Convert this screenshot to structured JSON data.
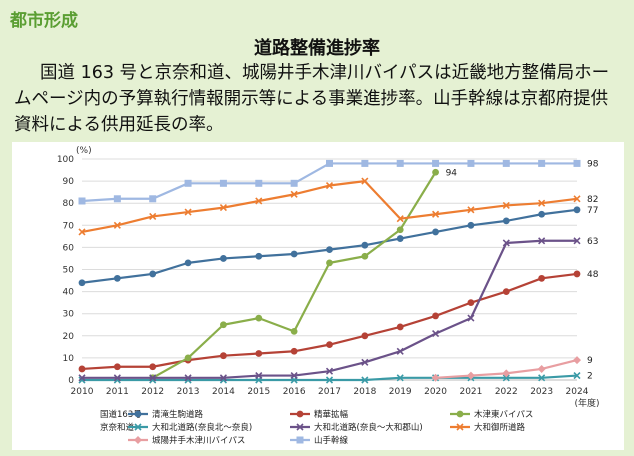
{
  "header": {
    "section": "都市形成",
    "title": "道路整備進捗率",
    "description": "国道 163 号と京奈和道、城陽井手木津川バイパスは近畿地方整備局ホームページ内の予算執行情報開示等による事業進捗率。山手幹線は京都府提供資料による供用延長の率。"
  },
  "chart_data": {
    "type": "line",
    "title": "道路整備進捗率",
    "ylabel": "(%)",
    "xlabel": "(年度)",
    "x": [
      2010,
      2011,
      2012,
      2013,
      2014,
      2015,
      2016,
      2017,
      2018,
      2019,
      2020,
      2021,
      2022,
      2023,
      2024
    ],
    "ylim": [
      0,
      100
    ],
    "yticks": [
      0,
      10,
      20,
      30,
      40,
      50,
      60,
      70,
      80,
      90,
      100
    ],
    "legend_groups": [
      {
        "label": "国道163号",
        "series": [
          "清滝生駒道路",
          "精華拡幅",
          "木津東バイパス"
        ]
      },
      {
        "label": "京奈和道",
        "series": [
          "大和北道路(奈良北～奈良)",
          "大和北道路(奈良～大和郡山)",
          "大和御所道路"
        ]
      },
      {
        "label": "",
        "series": [
          "城陽井手木津川バイパス",
          "山手幹線"
        ]
      }
    ],
    "series": [
      {
        "name": "清滝生駒道路",
        "color": "#41719c",
        "marker": "circle",
        "values": [
          44,
          46,
          48,
          53,
          55,
          56,
          57,
          59,
          61,
          64,
          67,
          70,
          72,
          75,
          77
        ],
        "end_label": "77"
      },
      {
        "name": "精華拡幅",
        "color": "#b54236",
        "marker": "circle",
        "values": [
          5,
          6,
          6,
          9,
          11,
          12,
          13,
          16,
          20,
          24,
          29,
          35,
          40,
          46,
          48
        ],
        "end_label": "48"
      },
      {
        "name": "木津東バイパス",
        "color": "#8aae4a",
        "marker": "circle",
        "values": [
          null,
          null,
          1,
          10,
          25,
          28,
          22,
          53,
          56,
          68,
          94,
          null,
          null,
          null,
          null
        ],
        "end_label": "94"
      },
      {
        "name": "大和北道路(奈良北～奈良)",
        "color": "#3a9aa6",
        "marker": "x",
        "values": [
          0,
          0,
          0,
          0,
          0,
          0,
          0,
          0,
          0,
          1,
          1,
          1,
          1,
          1,
          2
        ],
        "end_label": "2"
      },
      {
        "name": "大和北道路(奈良～大和郡山)",
        "color": "#6b5289",
        "marker": "x",
        "values": [
          1,
          1,
          1,
          1,
          1,
          2,
          2,
          4,
          8,
          13,
          21,
          28,
          62,
          63,
          63
        ],
        "end_label": "63"
      },
      {
        "name": "大和御所道路",
        "color": "#ed7d31",
        "marker": "x",
        "values": [
          67,
          70,
          74,
          76,
          78,
          81,
          84,
          88,
          90,
          73,
          75,
          77,
          79,
          80,
          82
        ],
        "end_label": "82"
      },
      {
        "name": "城陽井手木津川バイパス",
        "color": "#e89ea1",
        "marker": "diamond",
        "values": [
          null,
          null,
          null,
          null,
          null,
          null,
          null,
          null,
          null,
          null,
          1,
          2,
          3,
          5,
          9
        ],
        "end_label": "9"
      },
      {
        "name": "山手幹線",
        "color": "#9fb8e2",
        "marker": "square",
        "values": [
          81,
          82,
          82,
          89,
          89,
          89,
          89,
          98,
          98,
          98,
          98,
          98,
          98,
          98,
          98
        ],
        "end_label": "98"
      }
    ]
  }
}
